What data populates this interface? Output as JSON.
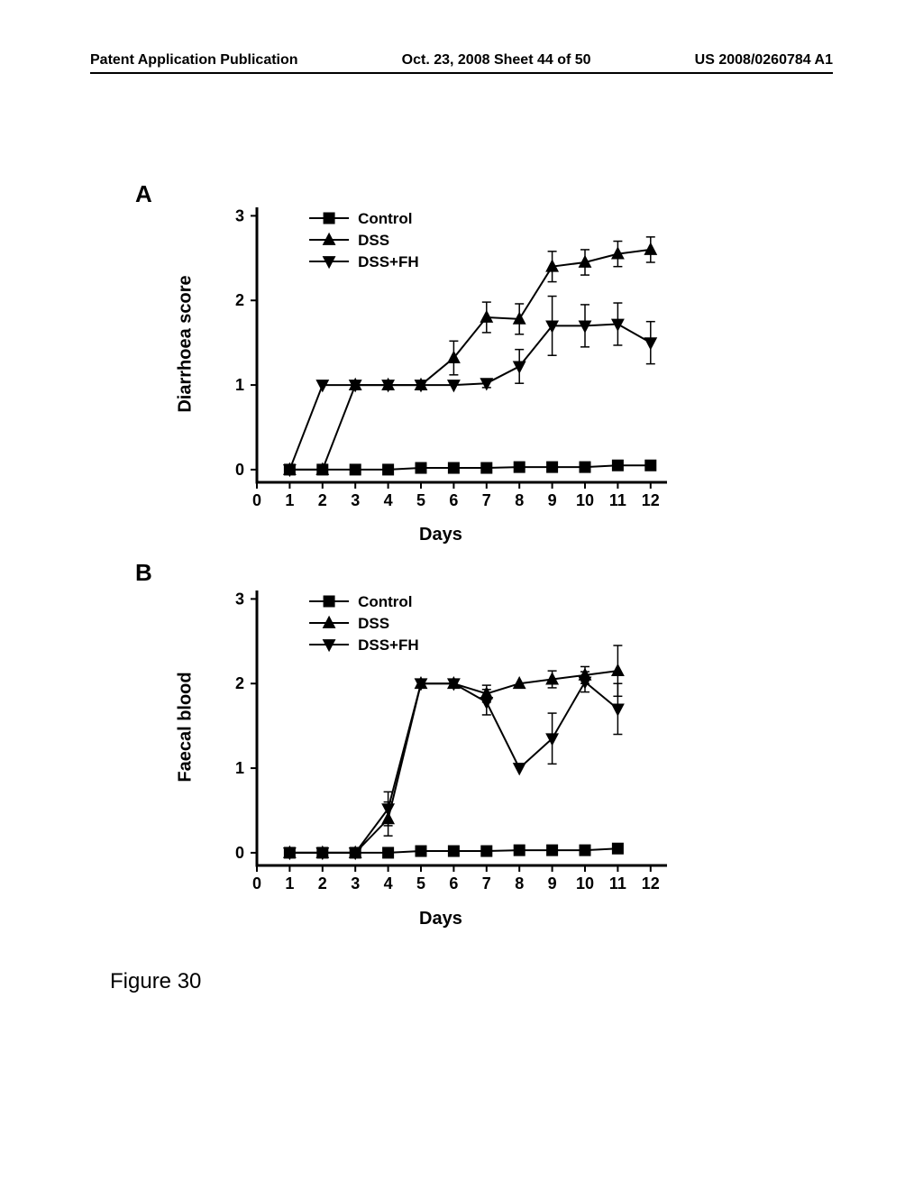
{
  "header": {
    "left": "Patent Application Publication",
    "center": "Oct. 23, 2008  Sheet 44 of 50",
    "right": "US 2008/0260784 A1"
  },
  "panelA": {
    "label": "A",
    "ylabel": "Diarrhoea score",
    "xlabel": "Days",
    "xlim": [
      0,
      12.5
    ],
    "ylim": [
      -0.15,
      3.1
    ],
    "xticks": [
      0,
      1,
      2,
      3,
      4,
      5,
      6,
      7,
      8,
      9,
      10,
      11,
      12
    ],
    "yticks": [
      0,
      1,
      2,
      3
    ],
    "legend": {
      "items": [
        {
          "label": "Control",
          "marker": "square"
        },
        {
          "label": "DSS",
          "marker": "triangle-up"
        },
        {
          "label": "DSS+FH",
          "marker": "triangle-down"
        }
      ]
    },
    "series": {
      "control": {
        "marker": "square",
        "x": [
          1,
          2,
          3,
          4,
          5,
          6,
          7,
          8,
          9,
          10,
          11,
          12
        ],
        "y": [
          0,
          0,
          0,
          0,
          0.02,
          0.02,
          0.02,
          0.03,
          0.03,
          0.03,
          0.05,
          0.05
        ],
        "err": [
          0,
          0,
          0,
          0,
          0,
          0,
          0,
          0,
          0,
          0,
          0,
          0
        ]
      },
      "dss": {
        "marker": "triangle-up",
        "x": [
          1,
          2,
          3,
          4,
          5,
          6,
          7,
          8,
          9,
          10,
          11,
          12
        ],
        "y": [
          0,
          0,
          1,
          1,
          1,
          1.32,
          1.8,
          1.78,
          2.4,
          2.45,
          2.55,
          2.6
        ],
        "err": [
          0,
          0,
          0,
          0,
          0,
          0.2,
          0.18,
          0.18,
          0.18,
          0.15,
          0.15,
          0.15
        ]
      },
      "dssfh": {
        "marker": "triangle-down",
        "x": [
          1,
          2,
          3,
          4,
          5,
          6,
          7,
          8,
          9,
          10,
          11,
          12
        ],
        "y": [
          0,
          1,
          1,
          1,
          1,
          1,
          1.02,
          1.22,
          1.7,
          1.7,
          1.72,
          1.5
        ],
        "err": [
          0,
          0,
          0,
          0,
          0,
          0,
          0.05,
          0.2,
          0.35,
          0.25,
          0.25,
          0.25
        ]
      }
    }
  },
  "panelB": {
    "label": "B",
    "ylabel": "Faecal blood",
    "xlabel": "Days",
    "xlim": [
      0,
      12.5
    ],
    "ylim": [
      -0.15,
      3.1
    ],
    "xticks": [
      0,
      1,
      2,
      3,
      4,
      5,
      6,
      7,
      8,
      9,
      10,
      11,
      12
    ],
    "yticks": [
      0,
      1,
      2,
      3
    ],
    "legend": {
      "items": [
        {
          "label": "Control",
          "marker": "square"
        },
        {
          "label": "DSS",
          "marker": "triangle-up"
        },
        {
          "label": "DSS+FH",
          "marker": "triangle-down"
        }
      ]
    },
    "series": {
      "control": {
        "marker": "square",
        "x": [
          1,
          2,
          3,
          4,
          5,
          6,
          7,
          8,
          9,
          10,
          11
        ],
        "y": [
          0,
          0,
          0,
          0,
          0.02,
          0.02,
          0.02,
          0.03,
          0.03,
          0.03,
          0.05
        ],
        "err": [
          0,
          0,
          0,
          0,
          0,
          0,
          0,
          0,
          0,
          0,
          0
        ]
      },
      "dss": {
        "marker": "triangle-up",
        "x": [
          1,
          2,
          3,
          4,
          5,
          6,
          7,
          8,
          9,
          10,
          11
        ],
        "y": [
          0,
          0,
          0,
          0.4,
          2,
          2,
          1.88,
          2,
          2.05,
          2.1,
          2.15
        ],
        "err": [
          0,
          0,
          0,
          0.2,
          0,
          0,
          0.1,
          0,
          0.1,
          0.1,
          0.3
        ]
      },
      "dssfh": {
        "marker": "triangle-down",
        "x": [
          1,
          2,
          3,
          4,
          5,
          6,
          7,
          8,
          9,
          10,
          11
        ],
        "y": [
          0,
          0,
          0,
          0.52,
          2,
          2,
          1.78,
          1.0,
          1.35,
          2.02,
          1.7
        ],
        "err": [
          0,
          0,
          0,
          0.2,
          0,
          0,
          0.15,
          0,
          0.3,
          0.12,
          0.3
        ]
      }
    }
  },
  "figure_caption": "Figure 30",
  "style": {
    "stroke_color": "#000000",
    "line_width": 2,
    "marker_size": 6,
    "tick_fontsize": 18,
    "label_fontsize": 20,
    "legend_fontsize": 17
  }
}
